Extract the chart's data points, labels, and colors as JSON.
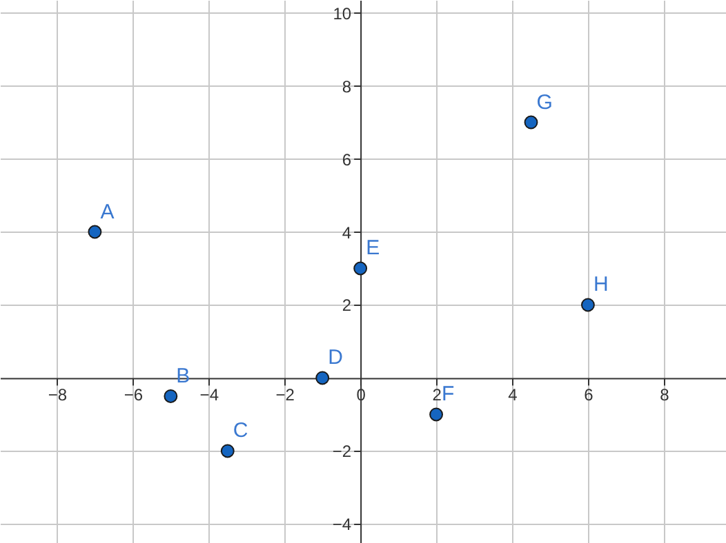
{
  "chart_data": {
    "type": "scatter",
    "x": [
      -7,
      -5,
      -3.5,
      -1,
      0,
      2,
      4.5,
      6
    ],
    "values": [
      4,
      -0.5,
      -2,
      0,
      3,
      -1,
      7,
      2
    ],
    "color": "#1565c0",
    "marker": "circle",
    "xlim": [
      -9.5,
      9.64
    ],
    "ylim": [
      -4.52,
      10.35
    ],
    "xticks": [
      -8,
      -6,
      -4,
      -2,
      0,
      2,
      4,
      6,
      8
    ],
    "yticks": [
      -4,
      -2,
      2,
      4,
      6,
      8,
      10
    ],
    "grid": true,
    "annotations": [
      {
        "text": "A",
        "x": -7,
        "y": 4
      },
      {
        "text": "B",
        "x": -5,
        "y": -0.5
      },
      {
        "text": "C",
        "x": -3.5,
        "y": -2
      },
      {
        "text": "D",
        "x": -1,
        "y": 0
      },
      {
        "text": "E",
        "x": 0,
        "y": 3
      },
      {
        "text": "F",
        "x": 2,
        "y": -1
      },
      {
        "text": "G",
        "x": 4.5,
        "y": 7
      },
      {
        "text": "H",
        "x": 6,
        "y": 2
      }
    ]
  }
}
